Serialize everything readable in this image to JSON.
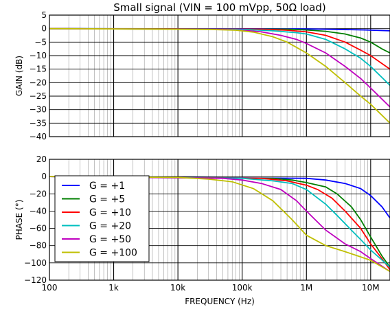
{
  "chart_data": [
    {
      "type": "line",
      "title": "Small signal (VIN = 100 mVpp, 50Ω load)",
      "xlabel": "",
      "ylabel": "GAIN (dB)",
      "xscale": "log",
      "xlim": [
        100,
        20000000
      ],
      "ylim": [
        -40,
        5
      ],
      "yticks": [
        5,
        0,
        -5,
        -10,
        -15,
        -20,
        -25,
        -30,
        -35,
        -40
      ],
      "ytick_labels": [
        "5",
        "0",
        "−5",
        "−10",
        "−15",
        "−20",
        "−25",
        "−30",
        "−35",
        "−40"
      ],
      "grid": true,
      "series": [
        {
          "name": "G = +1",
          "color": "#0000ff",
          "x": [
            100,
            1000000,
            3000000,
            8000000,
            20000000
          ],
          "y": [
            0,
            -0.1,
            -0.3,
            -0.5,
            -0.8
          ]
        },
        {
          "name": "G = +5",
          "color": "#007f00",
          "x": [
            100,
            500000,
            1000000,
            2000000,
            4000000,
            7000000,
            10000000,
            15000000,
            20000000
          ],
          "y": [
            0,
            -0.2,
            -0.5,
            -1,
            -2,
            -3.5,
            -5,
            -7.5,
            -9
          ]
        },
        {
          "name": "G = +10",
          "color": "#ff0000",
          "x": [
            100,
            200000,
            500000,
            1000000,
            2000000,
            4000000,
            7000000,
            10000000,
            20000000
          ],
          "y": [
            0,
            -0.2,
            -0.6,
            -1.2,
            -2.5,
            -5,
            -8,
            -10,
            -15
          ]
        },
        {
          "name": "G = +20",
          "color": "#00bfbf",
          "x": [
            100,
            100000,
            300000,
            700000,
            1000000,
            2000000,
            4000000,
            7000000,
            10000000,
            20000000
          ],
          "y": [
            0,
            -0.3,
            -0.8,
            -1.5,
            -2,
            -4,
            -7.5,
            -11,
            -14,
            -21
          ]
        },
        {
          "name": "G = +50",
          "color": "#bf00bf",
          "x": [
            100,
            50000,
            100000,
            200000,
            400000,
            700000,
            1000000,
            2000000,
            4000000,
            7000000,
            10000000,
            20000000
          ],
          "y": [
            0,
            -0.3,
            -0.6,
            -1.2,
            -2.5,
            -4,
            -5.5,
            -9,
            -14,
            -18.5,
            -22,
            -29
          ]
        },
        {
          "name": "G = +100",
          "color": "#bfbf00",
          "x": [
            100,
            30000,
            80000,
            150000,
            300000,
            500000,
            1000000,
            2000000,
            4000000,
            7000000,
            10000000,
            20000000
          ],
          "y": [
            0,
            -0.3,
            -0.6,
            -1.3,
            -3,
            -5,
            -9,
            -14,
            -20,
            -25,
            -28,
            -35
          ]
        }
      ]
    },
    {
      "type": "line",
      "title": "",
      "xlabel": "FREQUENCY (Hz)",
      "ylabel": "PHASE (°)",
      "xscale": "log",
      "xlim": [
        100,
        20000000
      ],
      "ylim": [
        -120,
        20
      ],
      "xticks": [
        100,
        1000,
        10000,
        100000,
        1000000,
        10000000
      ],
      "xtick_labels": [
        "100",
        "1k",
        "10k",
        "100k",
        "1M",
        "10M"
      ],
      "yticks": [
        20,
        0,
        -20,
        -40,
        -60,
        -80,
        -100,
        -120
      ],
      "ytick_labels": [
        "20",
        "0",
        "−20",
        "−40",
        "−60",
        "−80",
        "−100",
        "−120"
      ],
      "grid": true,
      "legend": "top-left",
      "series": [
        {
          "name": "G = +1",
          "color": "#0000ff",
          "x": [
            100,
            1000000,
            2000000,
            4000000,
            7000000,
            10000000,
            15000000,
            20000000
          ],
          "y": [
            0,
            -2,
            -4,
            -8,
            -14,
            -22,
            -35,
            -48
          ]
        },
        {
          "name": "G = +5",
          "color": "#007f00",
          "x": [
            100,
            300000,
            600000,
            1000000,
            2000000,
            3000000,
            5000000,
            7000000,
            10000000,
            15000000,
            20000000
          ],
          "y": [
            0,
            -2,
            -4,
            -7,
            -12,
            -20,
            -35,
            -50,
            -70,
            -92,
            -105
          ]
        },
        {
          "name": "G = +10",
          "color": "#ff0000",
          "x": [
            100,
            200000,
            500000,
            1000000,
            1500000,
            2500000,
            4000000,
            7000000,
            10000000,
            15000000,
            20000000
          ],
          "y": [
            0,
            -2,
            -5,
            -10,
            -15,
            -25,
            -40,
            -60,
            -78,
            -95,
            -108
          ]
        },
        {
          "name": "G = +20",
          "color": "#00bfbf",
          "x": [
            100,
            100000,
            300000,
            600000,
            1000000,
            2000000,
            3000000,
            5000000,
            7000000,
            10000000,
            20000000
          ],
          "y": [
            0,
            -2,
            -5,
            -8,
            -15,
            -32,
            -45,
            -62,
            -73,
            -85,
            -105
          ]
        },
        {
          "name": "G = +50",
          "color": "#bf00bf",
          "x": [
            100,
            50000,
            100000,
            200000,
            400000,
            700000,
            1000000,
            2000000,
            4000000,
            7000000,
            10000000,
            20000000
          ],
          "y": [
            0,
            -2,
            -4,
            -8,
            -15,
            -28,
            -40,
            -62,
            -78,
            -87,
            -95,
            -110
          ]
        },
        {
          "name": "G = +100",
          "color": "#bfbf00",
          "x": [
            100,
            10000,
            30000,
            70000,
            150000,
            300000,
            600000,
            1000000,
            2000000,
            4000000,
            7000000,
            10000000,
            20000000
          ],
          "y": [
            0,
            -1,
            -3,
            -6,
            -14,
            -28,
            -50,
            -68,
            -80,
            -87,
            -93,
            -97,
            -110
          ]
        }
      ]
    }
  ]
}
